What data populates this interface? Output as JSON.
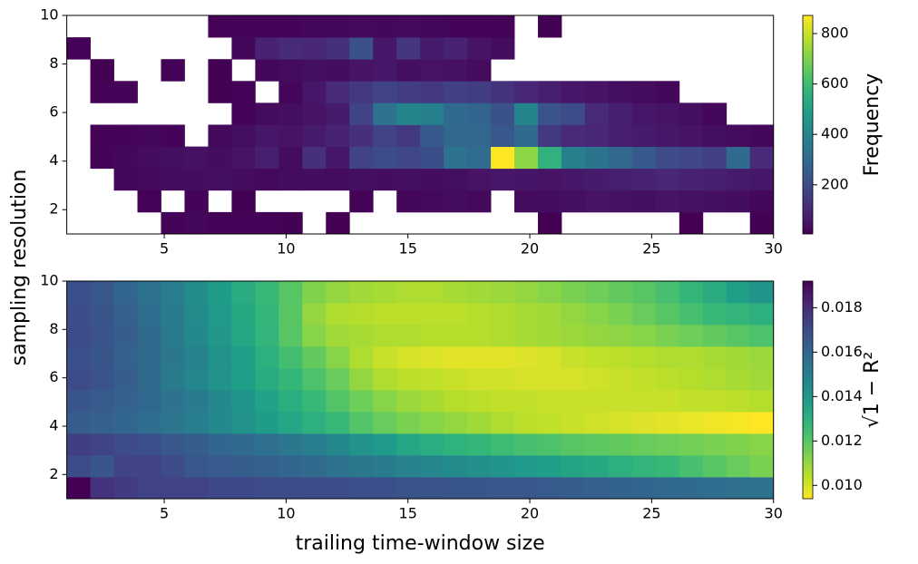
{
  "chart_data": [
    {
      "type": "heatmap",
      "colormap": "viridis",
      "colorbar_label": "Frequency",
      "ylabel": "sampling resolution",
      "xlim": [
        1,
        30
      ],
      "ylim": [
        1,
        10
      ],
      "xticks": [
        5,
        10,
        15,
        20,
        25,
        30
      ],
      "yticks": [
        2,
        4,
        6,
        8,
        10
      ],
      "clim": [
        5,
        872
      ],
      "cticks": [
        200,
        400,
        600,
        800
      ],
      "z": [
        [
          null,
          null,
          null,
          null,
          15,
          20,
          10,
          12,
          10,
          8,
          null,
          5,
          null,
          null,
          null,
          null,
          null,
          null,
          null,
          null,
          5,
          null,
          null,
          null,
          null,
          null,
          5,
          null,
          null,
          8
        ],
        [
          null,
          null,
          null,
          10,
          null,
          12,
          null,
          8,
          null,
          null,
          null,
          null,
          10,
          null,
          20,
          25,
          30,
          25,
          null,
          30,
          35,
          40,
          50,
          45,
          40,
          50,
          45,
          40,
          35,
          20
        ],
        [
          null,
          null,
          20,
          25,
          30,
          35,
          40,
          30,
          25,
          30,
          35,
          30,
          40,
          35,
          40,
          35,
          40,
          50,
          60,
          55,
          50,
          60,
          70,
          80,
          90,
          100,
          90,
          80,
          70,
          60
        ],
        [
          null,
          15,
          20,
          30,
          40,
          45,
          35,
          50,
          80,
          30,
          120,
          60,
          180,
          200,
          190,
          210,
          330,
          310,
          872,
          720,
          560,
          380,
          340,
          290,
          250,
          200,
          190,
          170,
          300,
          110
        ],
        [
          null,
          10,
          15,
          20,
          12,
          null,
          25,
          40,
          60,
          50,
          70,
          90,
          120,
          180,
          150,
          250,
          290,
          290,
          240,
          300,
          150,
          110,
          100,
          80,
          70,
          60,
          50,
          40,
          30,
          20
        ],
        [
          null,
          null,
          null,
          null,
          null,
          null,
          null,
          15,
          30,
          40,
          50,
          70,
          180,
          330,
          400,
          380,
          300,
          280,
          220,
          400,
          230,
          200,
          110,
          80,
          60,
          50,
          40,
          20,
          null,
          null
        ],
        [
          null,
          10,
          15,
          null,
          null,
          null,
          8,
          10,
          null,
          20,
          60,
          110,
          150,
          180,
          160,
          150,
          170,
          160,
          130,
          100,
          80,
          60,
          50,
          40,
          30,
          20,
          null,
          null,
          null,
          null
        ],
        [
          null,
          8,
          null,
          null,
          10,
          null,
          8,
          null,
          20,
          30,
          40,
          35,
          50,
          60,
          40,
          50,
          45,
          30,
          null,
          null,
          null,
          null,
          null,
          null,
          null,
          null,
          null,
          null,
          null,
          null
        ],
        [
          10,
          null,
          null,
          null,
          null,
          null,
          null,
          20,
          90,
          110,
          100,
          120,
          220,
          60,
          140,
          70,
          90,
          50,
          30,
          null,
          null,
          null,
          null,
          null,
          null,
          null,
          null,
          null,
          null,
          null
        ],
        [
          null,
          null,
          null,
          null,
          null,
          null,
          10,
          12,
          15,
          15,
          20,
          20,
          25,
          20,
          25,
          20,
          15,
          12,
          10,
          null,
          8,
          null,
          null,
          null,
          null,
          null,
          null,
          null,
          null,
          null
        ]
      ]
    },
    {
      "type": "heatmap",
      "colormap": "viridis_r",
      "colorbar_label": "√1 − R²",
      "xlabel": "trailing time-window size",
      "xlim": [
        1,
        30
      ],
      "ylim": [
        1,
        10
      ],
      "xticks": [
        5,
        10,
        15,
        20,
        25,
        30
      ],
      "yticks": [
        2,
        4,
        6,
        8,
        10
      ],
      "clim": [
        0.0094,
        0.0192
      ],
      "cticks": [
        {
          "value": 0.01,
          "label": "0.010"
        },
        0.012,
        0.014,
        0.016,
        0.018
      ],
      "z": [
        [
          0.0192,
          0.0178,
          0.0175,
          0.0172,
          0.0172,
          0.0172,
          0.0171,
          0.0171,
          0.017,
          0.017,
          0.0169,
          0.0169,
          0.0168,
          0.0168,
          0.0167,
          0.0167,
          0.0166,
          0.0166,
          0.0165,
          0.0165,
          0.0164,
          0.0163,
          0.0162,
          0.0161,
          0.016,
          0.0159,
          0.0158,
          0.0157,
          0.0156,
          0.0155
        ],
        [
          0.017,
          0.0166,
          0.0172,
          0.0172,
          0.017,
          0.0165,
          0.0164,
          0.0163,
          0.0162,
          0.016,
          0.0158,
          0.0155,
          0.0153,
          0.0151,
          0.0149,
          0.0147,
          0.0145,
          0.0143,
          0.0141,
          0.0139,
          0.0137,
          0.0135,
          0.0133,
          0.013,
          0.0128,
          0.0126,
          0.0123,
          0.012,
          0.0117,
          0.0114
        ],
        [
          0.0174,
          0.0172,
          0.017,
          0.0168,
          0.0165,
          0.0163,
          0.016,
          0.0158,
          0.0156,
          0.0153,
          0.015,
          0.0146,
          0.0142,
          0.0139,
          0.0134,
          0.0131,
          0.0129,
          0.0127,
          0.0125,
          0.0123,
          0.0122,
          0.012,
          0.0119,
          0.0118,
          0.0117,
          0.0116,
          0.0115,
          0.0114,
          0.0113,
          0.0112
        ],
        [
          0.0163,
          0.0162,
          0.016,
          0.0157,
          0.0154,
          0.015,
          0.0146,
          0.0142,
          0.0138,
          0.0134,
          0.013,
          0.0126,
          0.0121,
          0.0117,
          0.0114,
          0.0112,
          0.011,
          0.0108,
          0.0106,
          0.0104,
          0.0103,
          0.0102,
          0.0101,
          0.01,
          0.0099,
          0.0098,
          0.0097,
          0.0096,
          0.0095,
          0.0094
        ],
        [
          0.0166,
          0.0164,
          0.0162,
          0.0159,
          0.0155,
          0.0151,
          0.0146,
          0.0141,
          0.0136,
          0.0131,
          0.0126,
          0.0121,
          0.0116,
          0.0112,
          0.0109,
          0.0107,
          0.0105,
          0.0104,
          0.0103,
          0.0103,
          0.0102,
          0.0102,
          0.0102,
          0.0102,
          0.0102,
          0.0102,
          0.0103,
          0.0103,
          0.0104,
          0.0105
        ],
        [
          0.017,
          0.0167,
          0.0163,
          0.0158,
          0.0152,
          0.0147,
          0.0142,
          0.0137,
          0.0132,
          0.0127,
          0.0122,
          0.0117,
          0.011,
          0.0106,
          0.0104,
          0.0103,
          0.0102,
          0.0101,
          0.0101,
          0.01,
          0.01,
          0.01,
          0.0101,
          0.0102,
          0.0103,
          0.0104,
          0.0105,
          0.0106,
          0.0107,
          0.0108
        ],
        [
          0.0168,
          0.0166,
          0.0162,
          0.0158,
          0.0153,
          0.0148,
          0.0142,
          0.0137,
          0.013,
          0.0124,
          0.0118,
          0.0112,
          0.0106,
          0.0102,
          0.01,
          0.0099,
          0.0098,
          0.0098,
          0.0098,
          0.0099,
          0.01,
          0.0102,
          0.0103,
          0.0104,
          0.0105,
          0.0106,
          0.0106,
          0.0107,
          0.0108,
          0.0109
        ],
        [
          0.017,
          0.0167,
          0.0163,
          0.0158,
          0.0152,
          0.0146,
          0.014,
          0.0134,
          0.0128,
          0.012,
          0.0112,
          0.0108,
          0.0107,
          0.0106,
          0.0106,
          0.0105,
          0.0105,
          0.0105,
          0.0106,
          0.0107,
          0.0108,
          0.0109,
          0.011,
          0.0111,
          0.0112,
          0.0114,
          0.0116,
          0.0118,
          0.012,
          0.0122
        ],
        [
          0.0169,
          0.0166,
          0.0162,
          0.0157,
          0.0151,
          0.0145,
          0.0139,
          0.0133,
          0.0127,
          0.012,
          0.011,
          0.0106,
          0.0105,
          0.0104,
          0.0104,
          0.0104,
          0.0104,
          0.0105,
          0.0106,
          0.0107,
          0.0108,
          0.011,
          0.0112,
          0.0114,
          0.0117,
          0.012,
          0.0123,
          0.0126,
          0.0128,
          0.013
        ],
        [
          0.0168,
          0.0165,
          0.016,
          0.0155,
          0.015,
          0.0144,
          0.0138,
          0.0132,
          0.0126,
          0.012,
          0.0113,
          0.011,
          0.0108,
          0.0107,
          0.0106,
          0.0106,
          0.0107,
          0.0108,
          0.0109,
          0.011,
          0.0112,
          0.0114,
          0.0116,
          0.0118,
          0.012,
          0.0123,
          0.0127,
          0.0132,
          0.0137,
          0.0141
        ]
      ]
    }
  ]
}
